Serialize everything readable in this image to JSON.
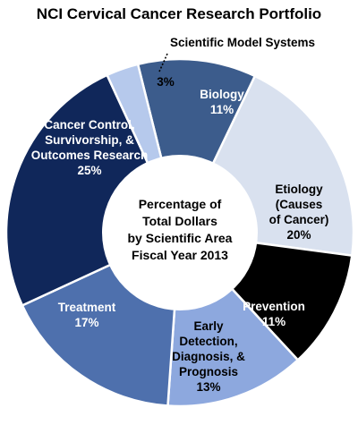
{
  "chart_data": {
    "type": "pie",
    "title": "NCI Cervical Cancer Research Portfolio",
    "center_text": [
      "Percentage of",
      "Total Dollars",
      "by Scientific Area",
      "Fiscal Year 2013"
    ],
    "unit": "%",
    "slices": [
      {
        "name_lines": [
          "Biology"
        ],
        "value": 11,
        "value_label": "11%",
        "color": "#3c5c8c",
        "text_color": "#ffffff"
      },
      {
        "name_lines": [
          "Etiology",
          "(Causes",
          "of Cancer)"
        ],
        "value": 20,
        "value_label": "20%",
        "color": "#d9e1ef",
        "text_color": "#000000"
      },
      {
        "name_lines": [
          "Prevention"
        ],
        "value": 11,
        "value_label": "11%",
        "color": "#000000",
        "text_color": "#ffffff"
      },
      {
        "name_lines": [
          "Early",
          "Detection,",
          "Diagnosis, &",
          "Prognosis"
        ],
        "value": 13,
        "value_label": "13%",
        "color": "#8da8de",
        "text_color": "#000000"
      },
      {
        "name_lines": [
          "Treatment"
        ],
        "value": 17,
        "value_label": "17%",
        "color": "#4e70ad",
        "text_color": "#ffffff"
      },
      {
        "name_lines": [
          "Cancer Control,",
          "Survivorship, &",
          "Outcomes Research"
        ],
        "value": 25,
        "value_label": "25%",
        "color": "#10275a",
        "text_color": "#ffffff"
      },
      {
        "name_lines": [
          "Scientific Model Systems"
        ],
        "value": 3,
        "value_label": "3%",
        "color": "#b6c9ec",
        "text_color": "#000000",
        "callout": true
      }
    ]
  }
}
